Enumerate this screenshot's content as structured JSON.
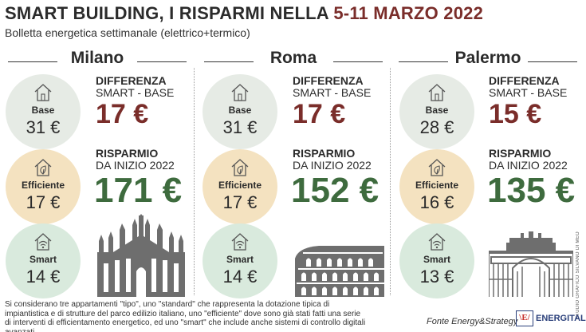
{
  "header": {
    "title_main": "SMART BUILDING, I RISPARMI NELLA ",
    "title_dates": "5-11 MARZO 2022",
    "subtitle": "Bolletta energetica settimanale (elettrico+termico)"
  },
  "labels": {
    "base": "Base",
    "efficiente": "Efficiente",
    "smart": "Smart",
    "diff_heading": "DIFFERENZA",
    "diff_sub": "SMART - BASE",
    "risparmio_heading": "RISPARMIO",
    "risparmio_sub": "DA INIZIO 2022"
  },
  "icons": {
    "base": "house-icon",
    "efficiente": "leaf-house-icon",
    "smart": "wifi-house-icon"
  },
  "colors": {
    "base_circle": "#e6ebe5",
    "efficiente_circle": "#f4e2c0",
    "smart_circle": "#d9eadd",
    "difference": "#7a2d2a",
    "saving": "#3e6b3e"
  },
  "chart_data": {
    "type": "table",
    "unit": "€",
    "columns": [
      "Base",
      "Efficiente",
      "Smart",
      "Differenza Smart - Base",
      "Risparmio da inizio 2022"
    ],
    "cities": [
      {
        "name": "Milano",
        "base": "31 €",
        "efficiente": "17 €",
        "smart": "14 €",
        "differenza": "17 €",
        "risparmio": "171 €",
        "landmark": "duomo-milano-icon"
      },
      {
        "name": "Roma",
        "base": "31 €",
        "efficiente": "17 €",
        "smart": "14 €",
        "differenza": "17 €",
        "risparmio": "152 €",
        "landmark": "colosseo-icon"
      },
      {
        "name": "Palermo",
        "base": "28 €",
        "efficiente": "16 €",
        "smart": "13 €",
        "differenza": "15 €",
        "risparmio": "135 €",
        "landmark": "teatro-politeama-icon"
      }
    ]
  },
  "footer": {
    "note": "Si considerano tre appartamenti \"tipo\", uno \"standard\" che rappresenta la dotazione tipica di impiantistica e di strutture del parco edilizio italiano, uno \"efficiente\" dove sono già stati fatti una serie di interventi di efficientamento energetico, ed uno \"smart\" che include anche sistemi di controllo digitali avanzati.",
    "source": "Fonte Energy&Strategy",
    "logo_mark": "\\E/",
    "logo_word": "ENERGITALIA",
    "credit": "STUDIO GRAFICO SILVANO DI MEO"
  }
}
